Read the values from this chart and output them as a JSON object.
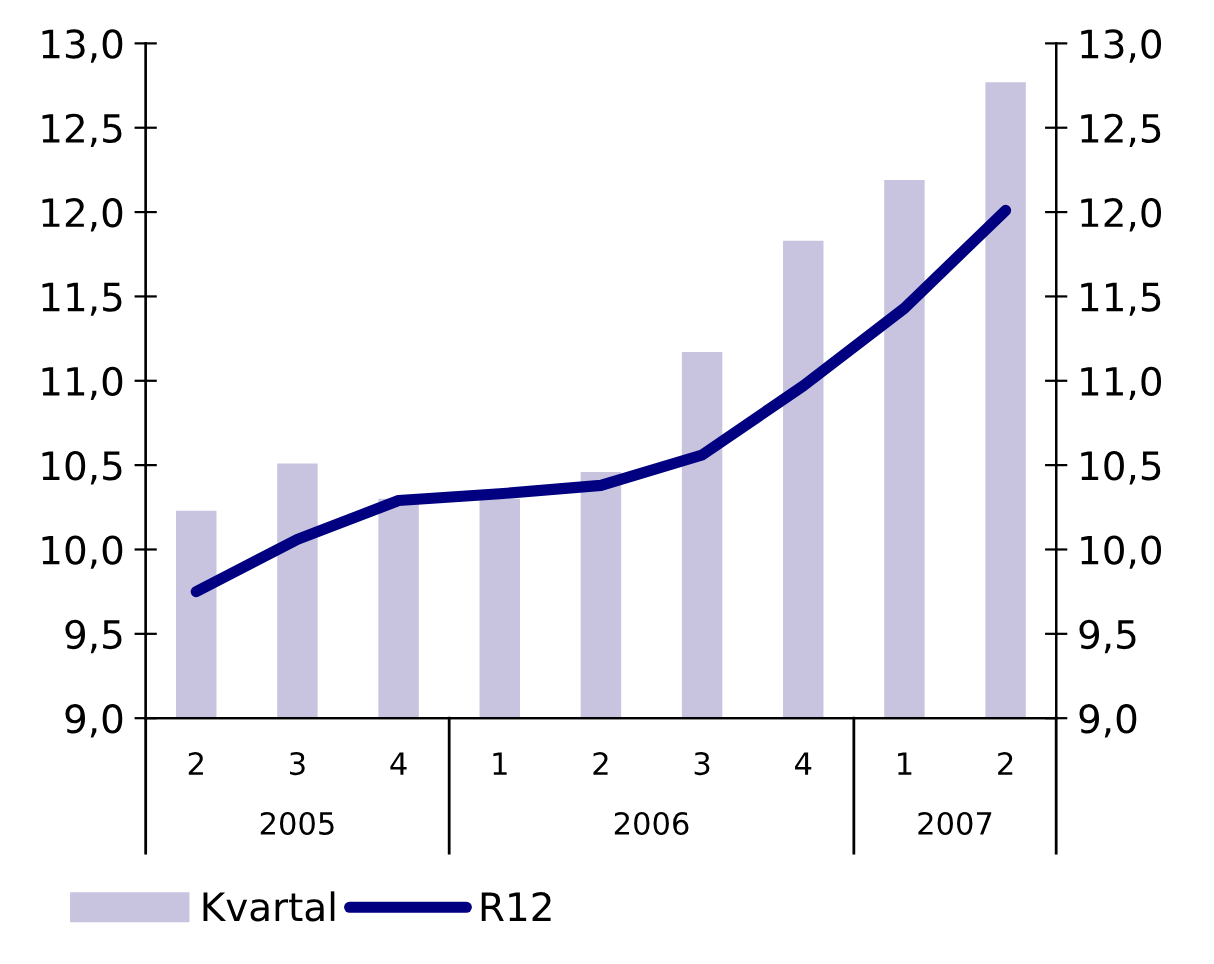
{
  "chart_data": {
    "type": "bar",
    "categories": [
      "2",
      "3",
      "4",
      "1",
      "2",
      "3",
      "4",
      "1",
      "2"
    ],
    "series": [
      {
        "name": "Kvartal",
        "color": "#c8c4e0",
        "values": [
          10.23,
          10.51,
          10.3,
          10.3,
          10.46,
          11.17,
          11.83,
          12.19,
          12.77
        ]
      },
      {
        "name": "R12",
        "type": "line",
        "color": "#000080",
        "values": [
          9.75,
          10.06,
          10.29,
          10.33,
          10.38,
          10.56,
          10.97,
          11.43,
          12.01
        ]
      }
    ],
    "annotations": [
      "2005",
      "2006",
      "2007"
    ],
    "ylim": [
      9,
      13
    ],
    "yticks": [
      {
        "value": 9,
        "label": "9,0"
      },
      {
        "value": 9.5,
        "label": "9,5"
      },
      {
        "value": 10,
        "label": "10,0"
      },
      {
        "value": 10.5,
        "label": "10,5"
      },
      {
        "value": 11,
        "label": "11,0"
      },
      {
        "value": 11.5,
        "label": "11,5"
      },
      {
        "value": 12,
        "label": "12,0"
      },
      {
        "value": 12.5,
        "label": "12,5"
      },
      {
        "value": 13,
        "label": "13,0"
      }
    ],
    "y2lim": [
      9,
      13
    ],
    "y2ticks": [
      {
        "value": 9,
        "label": "9,0"
      },
      {
        "value": 9.5,
        "label": "9,5"
      },
      {
        "value": 10,
        "label": "10,0"
      },
      {
        "value": 10.5,
        "label": "10,5"
      },
      {
        "value": 11,
        "label": "11,0"
      },
      {
        "value": 11.5,
        "label": "11,5"
      },
      {
        "value": 12,
        "label": "12,0"
      },
      {
        "value": 12.5,
        "label": "12,5"
      },
      {
        "value": 13,
        "label": "13,0"
      }
    ],
    "grid": false,
    "legend": "bottom left",
    "marker": "none",
    "line_style": "solid"
  }
}
